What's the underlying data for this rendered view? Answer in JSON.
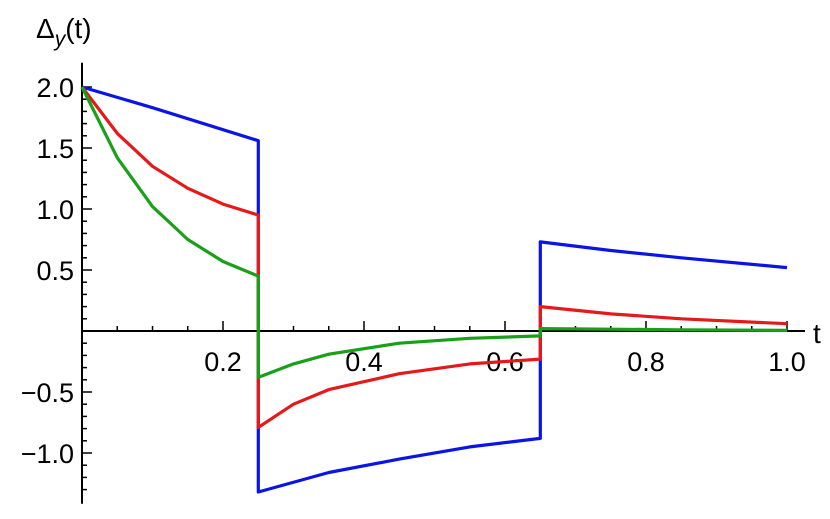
{
  "chart_data": {
    "type": "line",
    "title": "",
    "xlabel": "t",
    "ylabel_base": "Δ",
    "ylabel_sub": "y",
    "ylabel_tail": "(t)",
    "xlim": [
      0,
      1.0
    ],
    "ylim": [
      -1.35,
      2.1
    ],
    "x_ticks": [
      0.2,
      0.4,
      0.6,
      0.8,
      1.0
    ],
    "x_tick_labels": [
      "0.2",
      "0.4",
      "0.6",
      "0.8",
      "1.0"
    ],
    "y_ticks": [
      -1.0,
      -0.5,
      0.5,
      1.0,
      1.5,
      2.0
    ],
    "y_tick_labels": [
      "−1.0",
      "−0.5",
      "0.5",
      "1.0",
      "1.5",
      "2.0"
    ],
    "grid": false,
    "series": [
      {
        "color": "#0a14e6",
        "segments": [
          {
            "x": [
              0,
              0.1,
              0.25
            ],
            "y": [
              2.0,
              1.83,
              1.56
            ]
          },
          {
            "x": [
              0.25,
              0.35,
              0.45,
              0.55,
              0.65
            ],
            "y": [
              -1.32,
              -1.16,
              -1.05,
              -0.95,
              -0.88
            ]
          },
          {
            "x": [
              0.65,
              0.75,
              0.85,
              1.0
            ],
            "y": [
              0.73,
              0.66,
              0.6,
              0.52
            ]
          }
        ]
      },
      {
        "color": "#e61919",
        "segments": [
          {
            "x": [
              0,
              0.05,
              0.1,
              0.15,
              0.2,
              0.25
            ],
            "y": [
              2.0,
              1.62,
              1.35,
              1.17,
              1.04,
              0.95
            ]
          },
          {
            "x": [
              0.25,
              0.3,
              0.35,
              0.45,
              0.55,
              0.65
            ],
            "y": [
              -0.79,
              -0.6,
              -0.48,
              -0.35,
              -0.27,
              -0.23
            ]
          },
          {
            "x": [
              0.65,
              0.75,
              0.85,
              1.0
            ],
            "y": [
              0.2,
              0.14,
              0.1,
              0.06
            ]
          }
        ]
      },
      {
        "color": "#19a019",
        "segments": [
          {
            "x": [
              0,
              0.05,
              0.1,
              0.15,
              0.2,
              0.25
            ],
            "y": [
              2.0,
              1.42,
              1.02,
              0.75,
              0.57,
              0.45
            ]
          },
          {
            "x": [
              0.25,
              0.3,
              0.35,
              0.45,
              0.55,
              0.65
            ],
            "y": [
              -0.38,
              -0.27,
              -0.19,
              -0.1,
              -0.06,
              -0.04
            ]
          },
          {
            "x": [
              0.65,
              0.75,
              0.85,
              1.0
            ],
            "y": [
              0.02,
              0.015,
              0.01,
              0.005
            ]
          }
        ]
      }
    ]
  }
}
